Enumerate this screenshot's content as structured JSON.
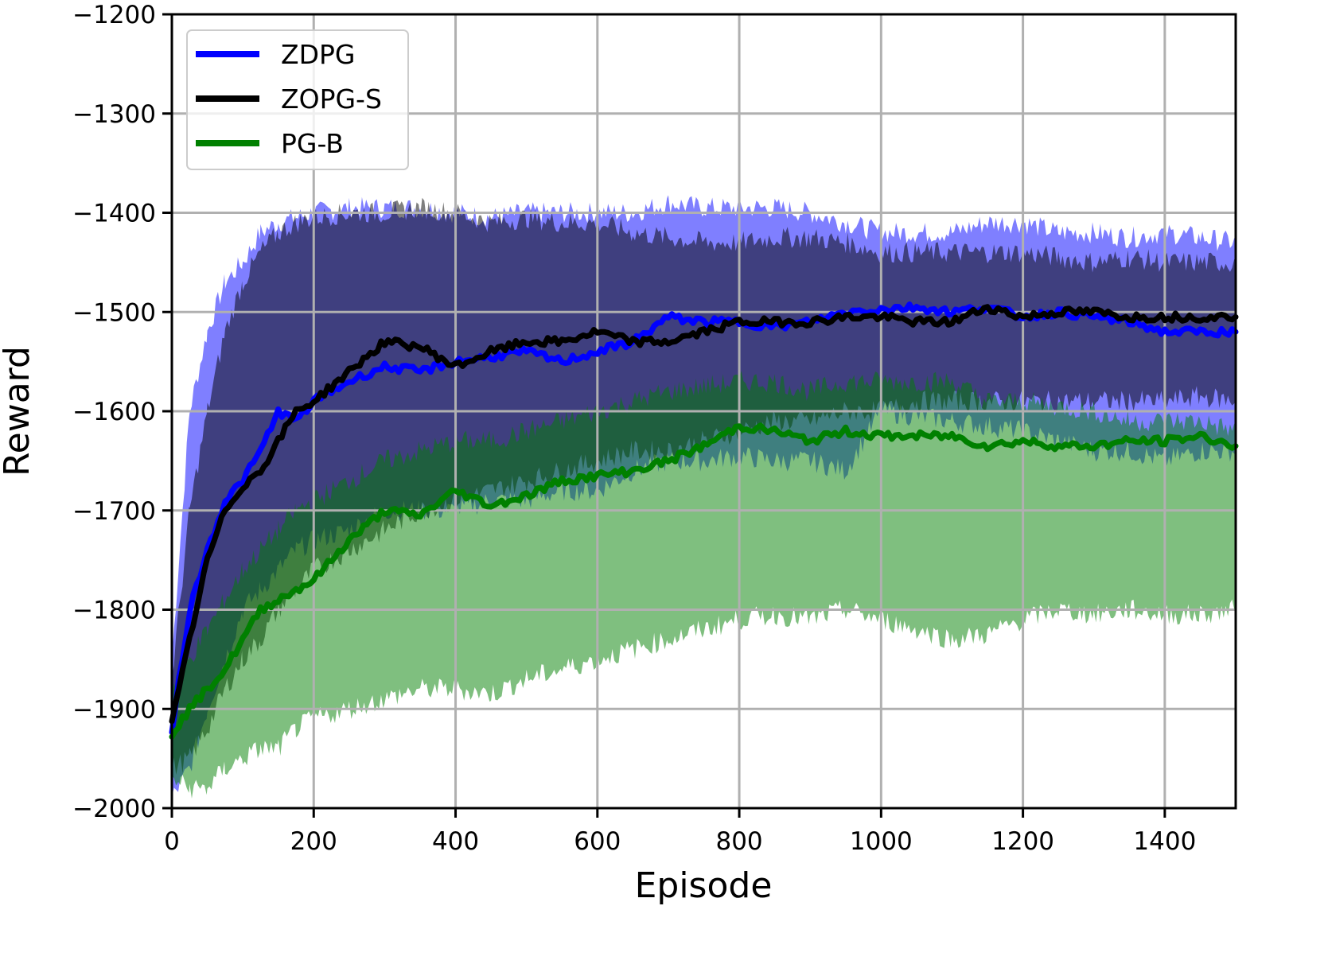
{
  "chart_data": {
    "type": "line",
    "title": "",
    "xlabel": "Episode",
    "ylabel": "Reward",
    "xlim": [
      0,
      1500
    ],
    "ylim": [
      -2000,
      -1200
    ],
    "xticks": [
      0,
      200,
      400,
      600,
      800,
      1000,
      1200,
      1400
    ],
    "yticks": [
      -1200,
      -1300,
      -1400,
      -1500,
      -1600,
      -1700,
      -1800,
      -1900,
      -2000
    ],
    "xtick_labels": [
      "0",
      "200",
      "400",
      "600",
      "800",
      "1000",
      "1200",
      "1400"
    ],
    "ytick_labels": [
      "−1200",
      "−1300",
      "−1400",
      "−1500",
      "−1600",
      "−1700",
      "−1800",
      "−1900",
      "−2000"
    ],
    "grid": true,
    "legend_position": "upper left",
    "x": [
      0,
      25,
      50,
      75,
      100,
      125,
      150,
      175,
      200,
      250,
      300,
      350,
      400,
      450,
      500,
      550,
      600,
      650,
      700,
      750,
      800,
      850,
      900,
      950,
      1000,
      1050,
      1100,
      1150,
      1200,
      1250,
      1300,
      1350,
      1400,
      1450,
      1500
    ],
    "series": [
      {
        "name": "ZDPG",
        "color": "#0000ff",
        "band_color": "#0000ff",
        "mean": [
          -1920,
          -1800,
          -1740,
          -1690,
          -1670,
          -1640,
          -1600,
          -1610,
          -1590,
          -1570,
          -1555,
          -1560,
          -1550,
          -1545,
          -1540,
          -1550,
          -1540,
          -1530,
          -1505,
          -1510,
          -1510,
          -1515,
          -1510,
          -1500,
          -1497,
          -1495,
          -1500,
          -1495,
          -1505,
          -1500,
          -1505,
          -1510,
          -1520,
          -1520,
          -1520
        ],
        "upper": [
          -1850,
          -1600,
          -1520,
          -1470,
          -1450,
          -1420,
          -1410,
          -1405,
          -1400,
          -1395,
          -1395,
          -1395,
          -1400,
          -1405,
          -1400,
          -1400,
          -1400,
          -1400,
          -1390,
          -1395,
          -1395,
          -1395,
          -1400,
          -1410,
          -1420,
          -1420,
          -1420,
          -1410,
          -1410,
          -1420,
          -1420,
          -1425,
          -1420,
          -1425,
          -1430
        ],
        "lower": [
          -1990,
          -1960,
          -1900,
          -1850,
          -1800,
          -1780,
          -1760,
          -1740,
          -1730,
          -1720,
          -1700,
          -1700,
          -1700,
          -1690,
          -1690,
          -1680,
          -1680,
          -1660,
          -1650,
          -1650,
          -1645,
          -1650,
          -1650,
          -1660,
          -1600,
          -1605,
          -1610,
          -1615,
          -1620,
          -1630,
          -1640,
          -1640,
          -1650,
          -1640,
          -1640
        ]
      },
      {
        "name": "ZOPG-S",
        "color": "#000000",
        "band_color": "#000000",
        "mean": [
          -1915,
          -1830,
          -1750,
          -1700,
          -1675,
          -1660,
          -1630,
          -1600,
          -1590,
          -1560,
          -1530,
          -1535,
          -1555,
          -1540,
          -1530,
          -1530,
          -1520,
          -1530,
          -1530,
          -1520,
          -1510,
          -1510,
          -1510,
          -1505,
          -1505,
          -1510,
          -1510,
          -1495,
          -1505,
          -1500,
          -1500,
          -1505,
          -1505,
          -1505,
          -1505
        ],
        "upper": [
          -1870,
          -1700,
          -1600,
          -1520,
          -1470,
          -1440,
          -1420,
          -1410,
          -1405,
          -1400,
          -1400,
          -1395,
          -1400,
          -1410,
          -1405,
          -1410,
          -1410,
          -1420,
          -1425,
          -1430,
          -1430,
          -1425,
          -1425,
          -1430,
          -1440,
          -1440,
          -1440,
          -1440,
          -1440,
          -1445,
          -1450,
          -1445,
          -1450,
          -1450,
          -1450
        ],
        "lower": [
          -1960,
          -1950,
          -1920,
          -1880,
          -1850,
          -1830,
          -1800,
          -1780,
          -1760,
          -1740,
          -1720,
          -1700,
          -1690,
          -1680,
          -1670,
          -1660,
          -1650,
          -1640,
          -1640,
          -1630,
          -1620,
          -1610,
          -1610,
          -1600,
          -1600,
          -1590,
          -1590,
          -1590,
          -1590,
          -1590,
          -1590,
          -1590,
          -1590,
          -1585,
          -1590
        ]
      },
      {
        "name": "PG-B",
        "color": "#008000",
        "band_color": "#008000",
        "mean": [
          -1925,
          -1900,
          -1880,
          -1860,
          -1830,
          -1800,
          -1790,
          -1780,
          -1770,
          -1730,
          -1700,
          -1705,
          -1680,
          -1695,
          -1685,
          -1670,
          -1665,
          -1660,
          -1650,
          -1635,
          -1615,
          -1620,
          -1630,
          -1620,
          -1625,
          -1625,
          -1625,
          -1635,
          -1630,
          -1635,
          -1635,
          -1630,
          -1630,
          -1625,
          -1635
        ],
        "upper": [
          -1880,
          -1850,
          -1820,
          -1790,
          -1760,
          -1740,
          -1720,
          -1700,
          -1690,
          -1670,
          -1650,
          -1640,
          -1630,
          -1630,
          -1620,
          -1610,
          -1600,
          -1590,
          -1580,
          -1575,
          -1570,
          -1570,
          -1580,
          -1570,
          -1570,
          -1570,
          -1570,
          -1590,
          -1590,
          -1595,
          -1600,
          -1610,
          -1610,
          -1610,
          -1620
        ],
        "lower": [
          -1970,
          -1980,
          -1980,
          -1960,
          -1950,
          -1940,
          -1940,
          -1920,
          -1910,
          -1900,
          -1890,
          -1880,
          -1880,
          -1885,
          -1870,
          -1860,
          -1850,
          -1840,
          -1830,
          -1820,
          -1810,
          -1805,
          -1810,
          -1800,
          -1810,
          -1820,
          -1830,
          -1825,
          -1810,
          -1800,
          -1805,
          -1800,
          -1805,
          -1805,
          -1800
        ]
      }
    ]
  },
  "legend": {
    "items": [
      {
        "label": "ZDPG",
        "color": "#0000ff"
      },
      {
        "label": "ZOPG-S",
        "color": "#000000"
      },
      {
        "label": "PG-B",
        "color": "#008000"
      }
    ]
  },
  "axes": {
    "xlabel": "Episode",
    "ylabel": "Reward"
  }
}
